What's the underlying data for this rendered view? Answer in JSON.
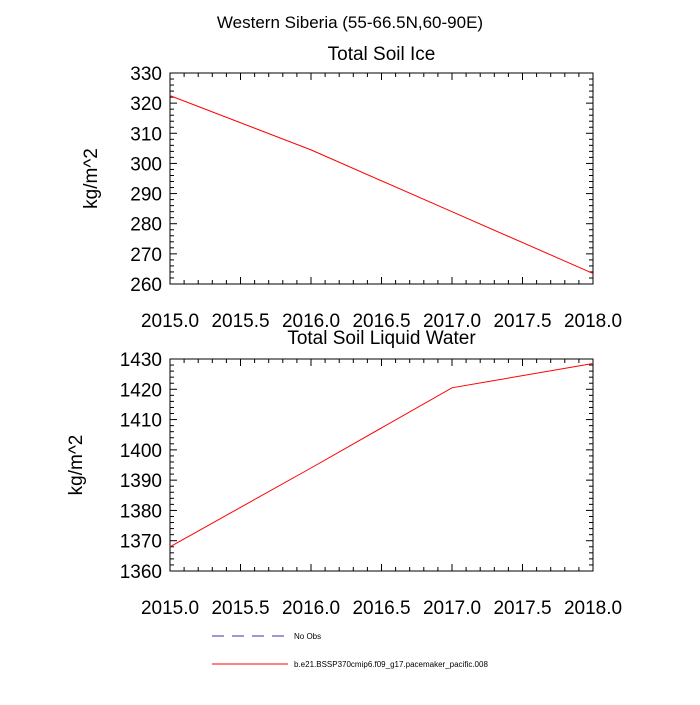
{
  "figure": {
    "title": "Western Siberia (55-66.5N,60-90E)"
  },
  "colors": {
    "series": "#ff0000",
    "obs": "#3333aa",
    "axis": "#000000"
  },
  "chart_data": [
    {
      "type": "line",
      "title": "Total Soil Ice",
      "ylabel": "kg/m^2",
      "xlabel": "",
      "xlim": [
        2015.0,
        2018.0
      ],
      "ylim": [
        260,
        330
      ],
      "xticks": [
        "2015.0",
        "2015.5",
        "2016.0",
        "2016.5",
        "2017.0",
        "2017.5",
        "2018.0"
      ],
      "yticks": [
        "330",
        "320",
        "310",
        "300",
        "290",
        "280",
        "270",
        "260"
      ],
      "x": [
        2015,
        2016,
        2017,
        2018
      ],
      "series": [
        {
          "name": "b.e21.BSSP370cmip6.f09_g17.pacemaker_pacific.008",
          "values": [
            322.5,
            304.5,
            284.0,
            263.5
          ]
        }
      ]
    },
    {
      "type": "line",
      "title": "Total Soil Liquid Water",
      "ylabel": "kg/m^2",
      "xlabel": "",
      "xlim": [
        2015.0,
        2018.0
      ],
      "ylim": [
        1360,
        1430
      ],
      "xticks": [
        "2015.0",
        "2015.5",
        "2016.0",
        "2016.5",
        "2017.0",
        "2017.5",
        "2018.0"
      ],
      "yticks": [
        "1430",
        "1420",
        "1410",
        "1400",
        "1390",
        "1380",
        "1370",
        "1360"
      ],
      "x": [
        2015,
        2016,
        2017,
        2018
      ],
      "series": [
        {
          "name": "b.e21.BSSP370cmip6.f09_g17.pacemaker_pacific.008",
          "values": [
            1368.0,
            1394.0,
            1420.5,
            1428.5
          ]
        }
      ]
    }
  ],
  "legend": {
    "items": [
      {
        "label": "No Obs",
        "style": "dashed",
        "color": "#3333aa"
      },
      {
        "label": "b.e21.BSSP370cmip6.f09_g17.pacemaker_pacific.008",
        "style": "solid",
        "color": "#ff0000"
      }
    ]
  }
}
